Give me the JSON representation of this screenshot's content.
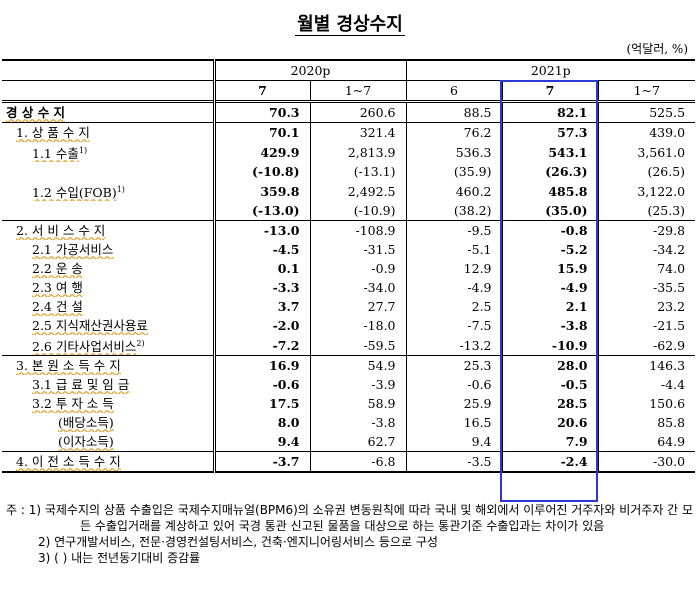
{
  "title": "월별 경상수지",
  "unit": "(억달러, %)",
  "header": {
    "year2020": "2020p",
    "year2021": "2021p",
    "cols": [
      "7",
      "1~7",
      "6",
      "7",
      "1~7"
    ]
  },
  "rows": [
    {
      "label": "경 상 수 지",
      "values": [
        "70.3",
        "260.6",
        "88.5",
        "82.1",
        "525.5"
      ]
    },
    {
      "label": "1. 상 품 수 지",
      "values": [
        "70.1",
        "321.4",
        "76.2",
        "57.3",
        "439.0"
      ]
    },
    {
      "label": "1.1 수출",
      "sup": "1)",
      "values": [
        "429.9",
        "2,813.9",
        "536.3",
        "543.1",
        "3,561.0"
      ]
    },
    {
      "label": "",
      "values": [
        "(-10.8)",
        "(-13.1)",
        "(35.9)",
        "(26.3)",
        "(26.5)"
      ]
    },
    {
      "label": "1.2 수입(FOB)",
      "sup": "1)",
      "values": [
        "359.8",
        "2,492.5",
        "460.2",
        "485.8",
        "3,122.0"
      ]
    },
    {
      "label": "",
      "values": [
        "(-13.0)",
        "(-10.9)",
        "(38.2)",
        "(35.0)",
        "(25.3)"
      ]
    },
    {
      "label": "2. 서 비 스 수 지",
      "values": [
        "-13.0",
        "-108.9",
        "-9.5",
        "-0.8",
        "-29.8"
      ]
    },
    {
      "label": "2.1 가공서비스",
      "values": [
        "-4.5",
        "-31.5",
        "-5.1",
        "-5.2",
        "-34.2"
      ]
    },
    {
      "label": "2.2 운 송",
      "values": [
        "0.1",
        "-0.9",
        "12.9",
        "15.9",
        "74.0"
      ]
    },
    {
      "label": "2.3 여 행",
      "values": [
        "-3.3",
        "-34.0",
        "-4.9",
        "-4.9",
        "-35.5"
      ]
    },
    {
      "label": "2.4 건 설",
      "values": [
        "3.7",
        "27.7",
        "2.5",
        "2.1",
        "23.2"
      ]
    },
    {
      "label": "2.5 지식재산권사용료",
      "values": [
        "-2.0",
        "-18.0",
        "-7.5",
        "-3.8",
        "-21.5"
      ]
    },
    {
      "label": "2.6 기타사업서비스",
      "sup": "2)",
      "values": [
        "-7.2",
        "-59.5",
        "-13.2",
        "-10.9",
        "-62.9"
      ]
    },
    {
      "label": "3. 본 원 소 득 수 지",
      "values": [
        "16.9",
        "54.9",
        "25.3",
        "28.0",
        "146.3"
      ]
    },
    {
      "label": "3.1 급 료 및 임 금",
      "values": [
        "-0.6",
        "-3.9",
        "-0.6",
        "-0.5",
        "-4.4"
      ]
    },
    {
      "label": "3.2 투 자 소 득",
      "values": [
        "17.5",
        "58.9",
        "25.9",
        "28.5",
        "150.6"
      ]
    },
    {
      "label": "(배당소득)",
      "values": [
        "8.0",
        "-3.8",
        "16.5",
        "20.6",
        "85.8"
      ]
    },
    {
      "label": "(이자소득)",
      "values": [
        "9.4",
        "62.7",
        "9.4",
        "7.9",
        "64.9"
      ]
    },
    {
      "label": "4. 이 전 소 득 수 지",
      "values": [
        "-3.7",
        "-6.8",
        "-3.5",
        "-2.4",
        "-30.0"
      ]
    }
  ],
  "notes": [
    "주 : 1) 국제수지의 상품 수출입은 국제수지매뉴얼(BPM6)의 소유권 변동원칙에 따라 국내 및 해외에서 이루어진 거주자와 비거주자 간 모든 수출입거래를 계상하고 있어 국경 통관 신고된 물품을 대상으로 하는 통관기준 수출입과는 차이가 있음",
    "2) 연구개발서비스, 전문·경영컨설팅서비스, 건축·엔지니어링서비스 등으로 구성",
    "3) ( ) 내는 전년동기대비 증감률"
  ],
  "colors": {
    "highlight": "#2c39d8",
    "underline": "#e0a030"
  }
}
